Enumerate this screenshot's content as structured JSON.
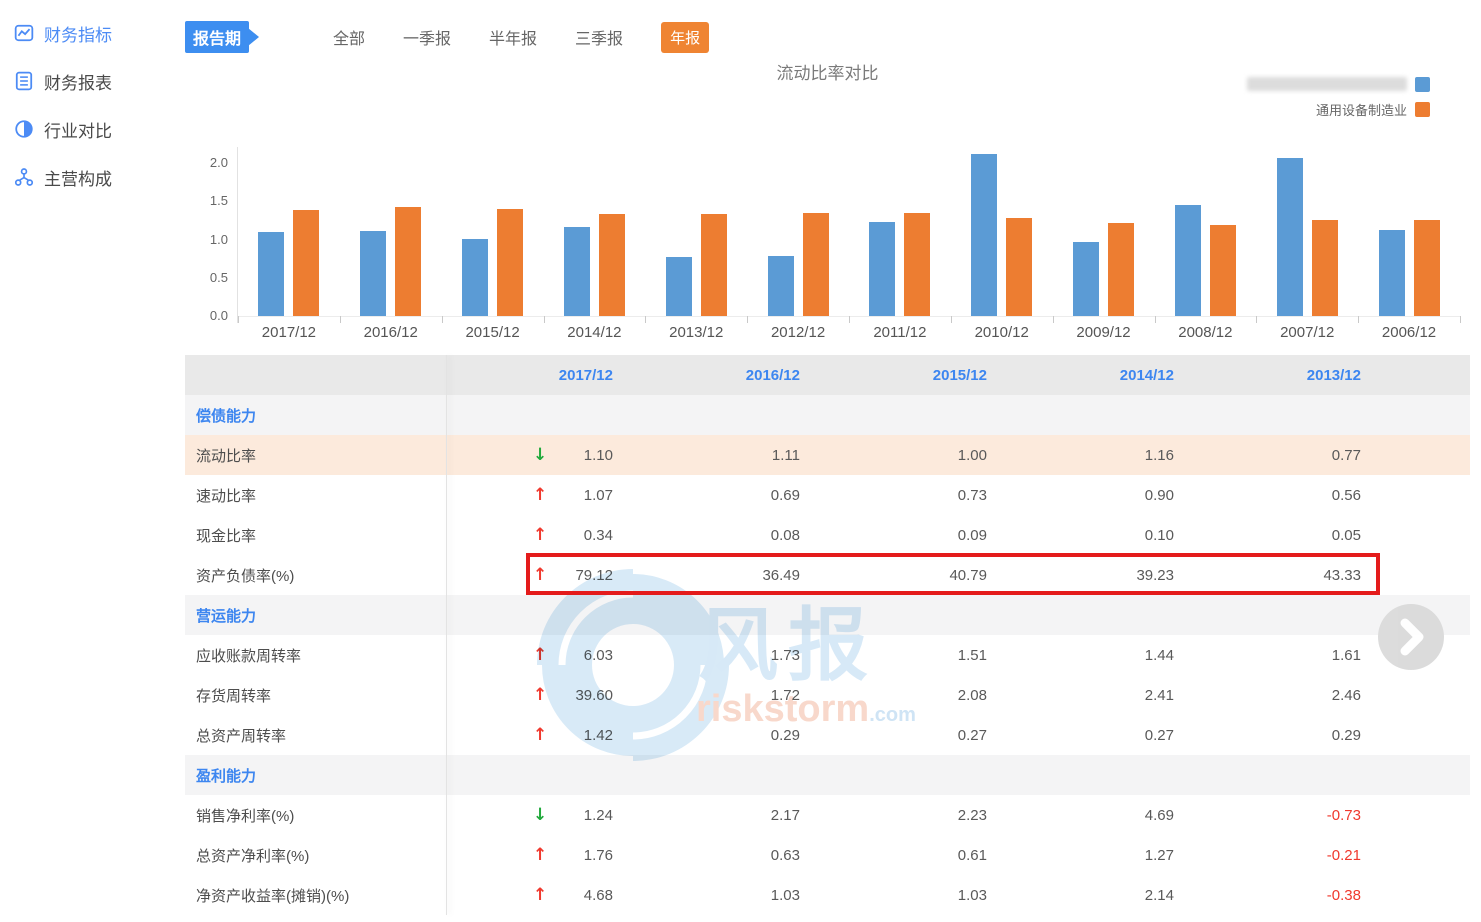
{
  "sidebar": {
    "items": [
      {
        "label": "财务指标",
        "icon": "line-chart-icon",
        "active": true
      },
      {
        "label": "财务报表",
        "icon": "report-icon",
        "active": false
      },
      {
        "label": "行业对比",
        "icon": "industry-compare-icon",
        "active": false
      },
      {
        "label": "主营构成",
        "icon": "composition-icon",
        "active": false
      }
    ]
  },
  "filters": {
    "ribbon_label": "报告期",
    "tabs": [
      {
        "label": "全部",
        "active": false
      },
      {
        "label": "一季报",
        "active": false
      },
      {
        "label": "半年报",
        "active": false
      },
      {
        "label": "三季报",
        "active": false
      },
      {
        "label": "年报",
        "active": true
      }
    ]
  },
  "chart_data": {
    "type": "bar",
    "title": "流动比率对比",
    "categories": [
      "2017/12",
      "2016/12",
      "2015/12",
      "2014/12",
      "2013/12",
      "2012/12",
      "2011/12",
      "2010/12",
      "2009/12",
      "2008/12",
      "2007/12",
      "2006/12"
    ],
    "series": [
      {
        "name": "",
        "redacted": true,
        "color": "#5B9BD5",
        "values": [
          1.1,
          1.11,
          1.0,
          1.16,
          0.77,
          0.78,
          1.23,
          2.12,
          0.97,
          1.45,
          2.06,
          1.13
        ]
      },
      {
        "name": "通用设备制造业",
        "color": "#ED7D31",
        "values": [
          1.38,
          1.42,
          1.4,
          1.33,
          1.33,
          1.35,
          1.35,
          1.28,
          1.22,
          1.19,
          1.26,
          1.26
        ]
      }
    ],
    "ylim": [
      0,
      2.25
    ],
    "yticks": [
      2.0,
      1.5,
      1.0,
      0.5,
      0.0
    ],
    "grid": false,
    "legend_position": "top-right"
  },
  "table": {
    "columns": [
      "2017/12",
      "2016/12",
      "2015/12",
      "2014/12",
      "2013/12"
    ],
    "rows": [
      {
        "type": "section",
        "label": "偿债能力"
      },
      {
        "type": "indicator",
        "label": "流动比率",
        "arrow": "down",
        "highlight": true,
        "values": [
          "1.10",
          "1.11",
          "1.00",
          "1.16",
          "0.77"
        ]
      },
      {
        "type": "indicator",
        "label": "速动比率",
        "arrow": "up",
        "values": [
          "1.07",
          "0.69",
          "0.73",
          "0.90",
          "0.56"
        ]
      },
      {
        "type": "indicator",
        "label": "现金比率",
        "arrow": "up",
        "values": [
          "0.34",
          "0.08",
          "0.09",
          "0.10",
          "0.05"
        ]
      },
      {
        "type": "indicator",
        "label": "资产负债率(%)",
        "arrow": "up",
        "redbox": true,
        "values": [
          "79.12",
          "36.49",
          "40.79",
          "39.23",
          "43.33"
        ]
      },
      {
        "type": "section",
        "label": "营运能力"
      },
      {
        "type": "indicator",
        "label": "应收账款周转率",
        "arrow": "up",
        "values": [
          "6.03",
          "1.73",
          "1.51",
          "1.44",
          "1.61"
        ]
      },
      {
        "type": "indicator",
        "label": "存货周转率",
        "arrow": "up",
        "values": [
          "39.60",
          "1.72",
          "2.08",
          "2.41",
          "2.46"
        ]
      },
      {
        "type": "indicator",
        "label": "总资产周转率",
        "arrow": "up",
        "values": [
          "1.42",
          "0.29",
          "0.27",
          "0.27",
          "0.29"
        ]
      },
      {
        "type": "section",
        "label": "盈利能力"
      },
      {
        "type": "indicator",
        "label": "销售净利率(%)",
        "arrow": "down",
        "values": [
          "1.24",
          "2.17",
          "2.23",
          "4.69",
          "-0.73"
        ]
      },
      {
        "type": "indicator",
        "label": "总资产净利率(%)",
        "arrow": "up",
        "values": [
          "1.76",
          "0.63",
          "0.61",
          "1.27",
          "-0.21"
        ]
      },
      {
        "type": "indicator",
        "label": "净资产收益率(摊销)(%)",
        "arrow": "up",
        "values": [
          "4.68",
          "1.03",
          "1.03",
          "2.14",
          "-0.38"
        ]
      }
    ]
  },
  "watermark": {
    "logo_text": "风报",
    "brand": "riskstorm",
    "domain_suffix": ".com"
  },
  "colors": {
    "ribbon_blue": "#3D8EF0",
    "active_tab_orange": "#EF8432",
    "header_year_blue": "#3D86F0",
    "section_blue": "#3D86F0",
    "row_highlight_peach": "#FCEADC",
    "up_arrow_red": "#F0392E",
    "down_arrow_green": "#21A93C",
    "negative_red": "#F0392E",
    "annotation_box_red": "#E41B1B"
  }
}
